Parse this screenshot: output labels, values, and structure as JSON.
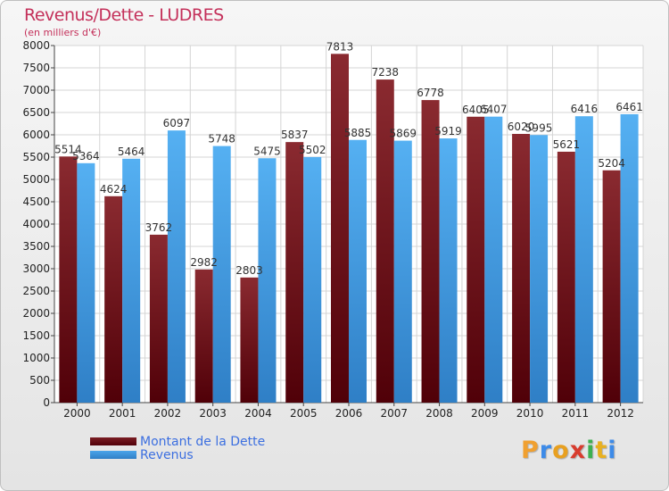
{
  "title": "Revenus/Dette - LUDRES",
  "subtitle": "(en milliers d'€)",
  "logo": {
    "letters": [
      "P",
      "r",
      "o",
      "x",
      "i",
      "t",
      "i"
    ],
    "colors": [
      "#f0a030",
      "#3d8be8",
      "#e8a020",
      "#d83c2e",
      "#3db050",
      "#e8b020",
      "#3d8be8"
    ]
  },
  "colors": {
    "debt": "#7a1e24",
    "debt_dark": "#520008",
    "revenue": "#4aa5ea",
    "revenue_dark": "#2f7fc6",
    "title": "#c4305a",
    "legend_text": "#3c6fe0"
  },
  "chart_data": {
    "type": "bar",
    "categories": [
      "2000",
      "2001",
      "2002",
      "2003",
      "2004",
      "2005",
      "2006",
      "2007",
      "2008",
      "2009",
      "2010",
      "2011",
      "2012"
    ],
    "series": [
      {
        "name": "Montant de la Dette",
        "values": [
          5514,
          4624,
          3762,
          2982,
          2803,
          5837,
          7813,
          7238,
          6778,
          6405,
          6020,
          5621,
          5204
        ]
      },
      {
        "name": "Revenus",
        "values": [
          5364,
          5464,
          6097,
          5748,
          5475,
          5502,
          5885,
          5869,
          5919,
          6407,
          5995,
          6416,
          6461
        ]
      }
    ],
    "ylim": [
      0,
      8000
    ],
    "yticks": [
      0,
      500,
      1000,
      1500,
      2000,
      2500,
      3000,
      3500,
      4000,
      4500,
      5000,
      5500,
      6000,
      6500,
      7000,
      7500,
      8000
    ],
    "grid": true,
    "legend": "bottom-left"
  }
}
